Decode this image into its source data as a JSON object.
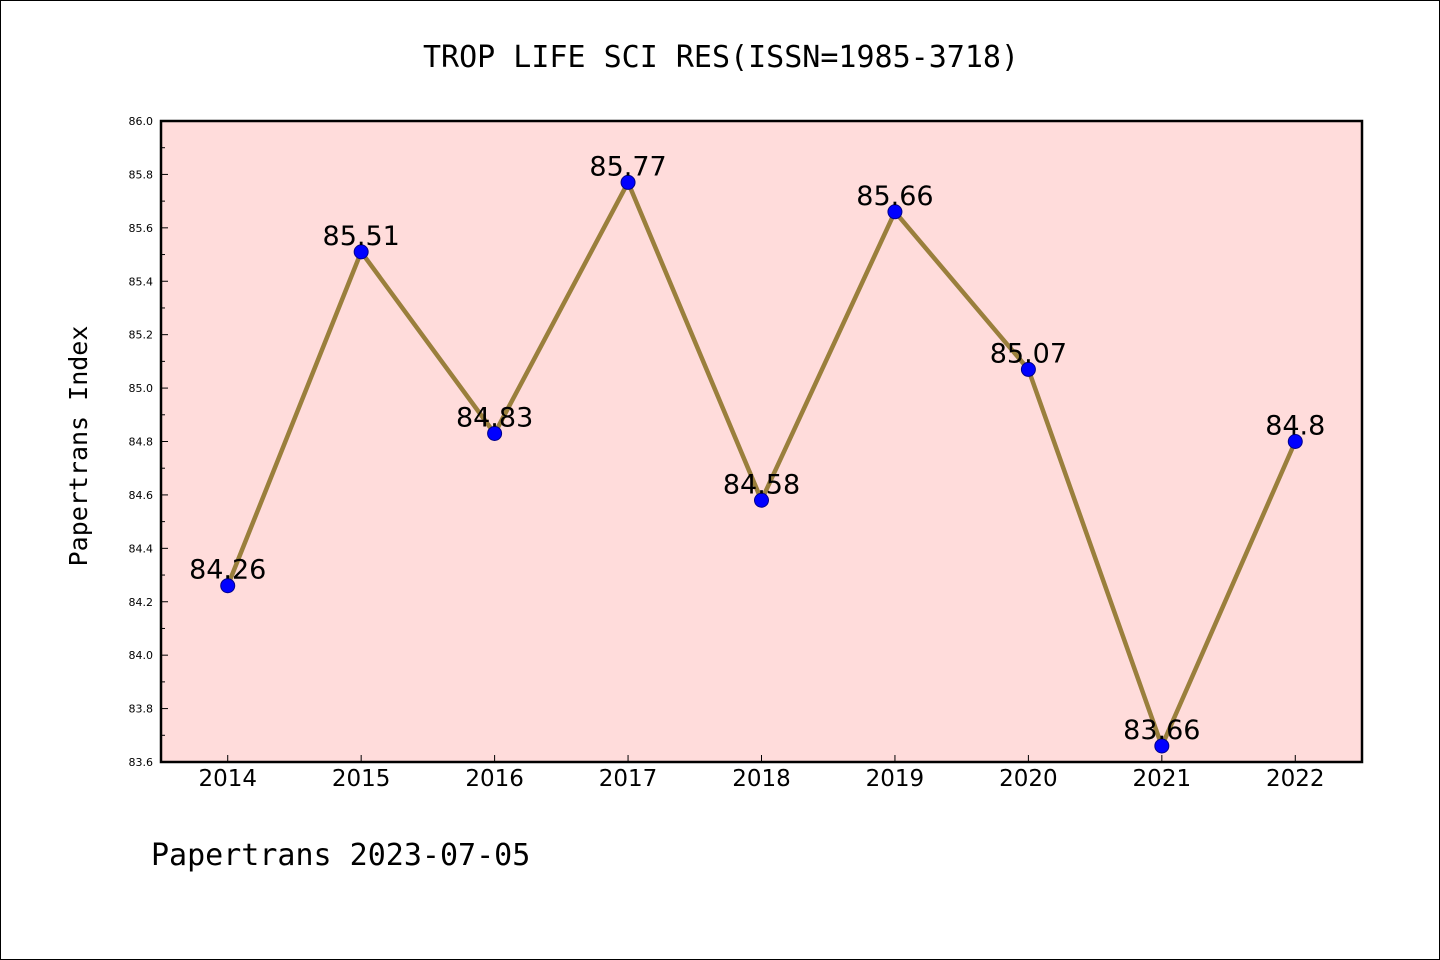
{
  "chart_data": {
    "type": "line",
    "title": "TROP LIFE SCI RES(ISSN=1985-3718)",
    "ylabel": "Papertrans Index",
    "xlabel": "",
    "footer": "Papertrans 2023-07-05",
    "categories": [
      "2014",
      "2015",
      "2016",
      "2017",
      "2018",
      "2019",
      "2020",
      "2021",
      "2022"
    ],
    "series": [
      {
        "values": [
          84.26,
          85.51,
          84.83,
          85.77,
          84.58,
          85.66,
          85.07,
          83.66,
          84.8
        ],
        "labels": [
          "84.26",
          "85.51",
          "84.83",
          "85.77",
          "84.58",
          "85.66",
          "85.07",
          "83.66",
          "84.8"
        ]
      }
    ],
    "ylim": [
      83.6,
      86.0
    ],
    "yticks": [
      "83.6",
      "83.8",
      "84.0",
      "84.2",
      "84.4",
      "84.6",
      "84.8",
      "85.0",
      "85.2",
      "85.4",
      "85.6",
      "85.8",
      "86.0"
    ],
    "grid": false,
    "colors": {
      "plot_background": "#ffdcdb",
      "line": "#9a7f3c",
      "marker": "#0000ff",
      "marker_edge": "#00008b"
    }
  }
}
